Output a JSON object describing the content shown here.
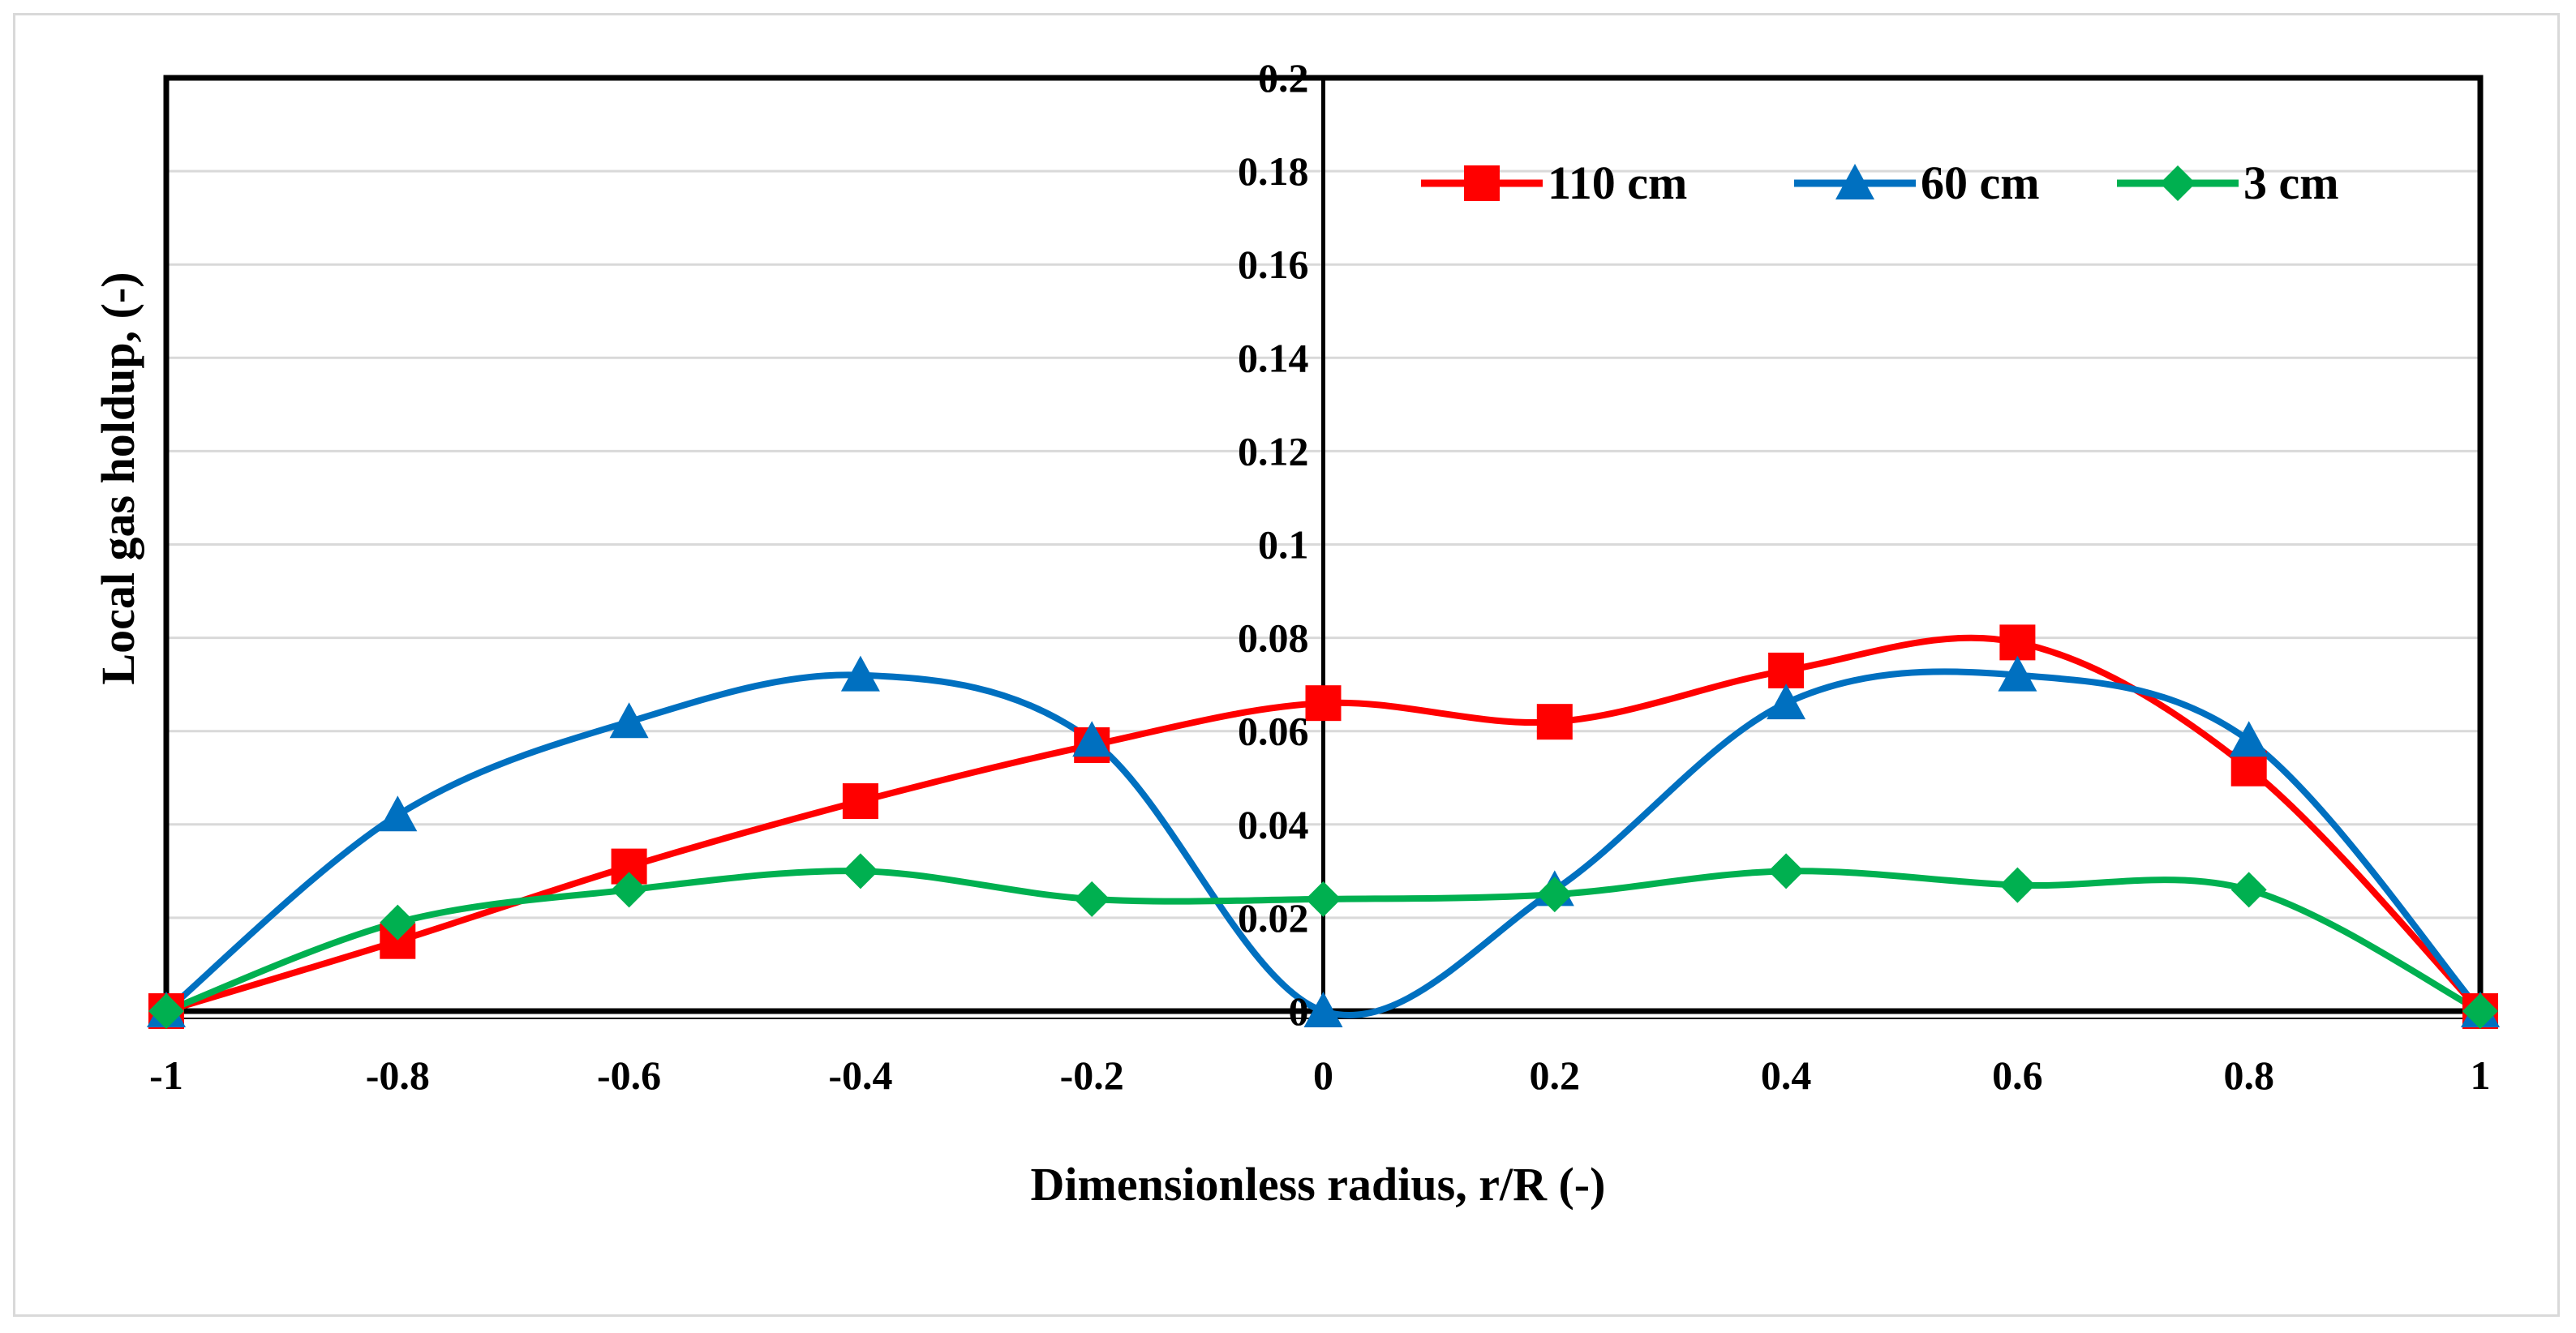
{
  "chart_data": {
    "type": "line",
    "title": "",
    "xlabel": "Dimensionless radius, r/R (-)",
    "ylabel": "Local gas holdup, (-)",
    "xlim": [
      -1,
      1
    ],
    "ylim": [
      0,
      0.2
    ],
    "x_ticks": [
      "-1",
      "-0.8",
      "-0.6",
      "-0.4",
      "-0.2",
      "0",
      "0.2",
      "0.4",
      "0.6",
      "0.8",
      "1"
    ],
    "y_ticks": [
      "0",
      "0.02",
      "0.04",
      "0.06",
      "0.08",
      "0.1",
      "0.12",
      "0.14",
      "0.16",
      "0.18",
      "0.2"
    ],
    "grid": true,
    "legend_position": "top-right",
    "x": [
      -1,
      -0.8,
      -0.6,
      -0.4,
      -0.2,
      0,
      0.2,
      0.4,
      0.6,
      0.8,
      1
    ],
    "series": [
      {
        "name": "110 cm",
        "color": "#ff0000",
        "marker": "square",
        "values": [
          0,
          0.015,
          0.031,
          0.045,
          0.057,
          0.066,
          0.062,
          0.073,
          0.079,
          0.052,
          0
        ]
      },
      {
        "name": "60 cm",
        "color": "#0070c0",
        "marker": "triangle",
        "values": [
          0,
          0.042,
          0.062,
          0.072,
          0.058,
          0,
          0.026,
          0.066,
          0.072,
          0.058,
          0
        ]
      },
      {
        "name": "3 cm",
        "color": "#00b050",
        "marker": "diamond",
        "values": [
          0,
          0.019,
          0.026,
          0.03,
          0.024,
          0.024,
          0.025,
          0.03,
          0.027,
          0.026,
          0
        ]
      }
    ]
  }
}
